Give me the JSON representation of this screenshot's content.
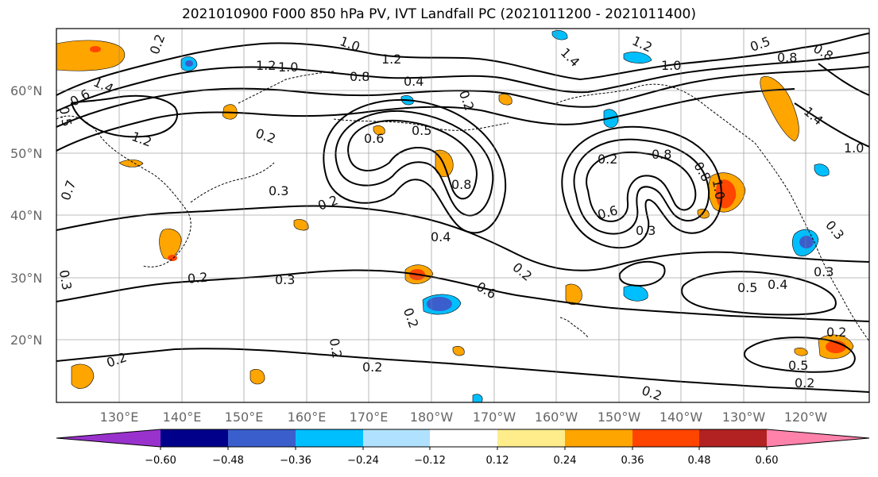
{
  "title": "2021010900 F000 850 hPa PV, IVT Landfall PC (2021011200 - 2021011400)",
  "map": {
    "lon_labels": [
      "130°E",
      "140°E",
      "150°E",
      "160°E",
      "170°E",
      "180°W",
      "170°W",
      "160°W",
      "150°W",
      "140°W",
      "130°W",
      "120°W"
    ],
    "lat_labels": [
      "60°N",
      "50°N",
      "40°N",
      "30°N",
      "20°N"
    ],
    "contour_labels": [
      "1.0",
      "1.2",
      "1.0",
      "1.2",
      "1.4",
      "0.8",
      "0.4",
      "0.2",
      "1.2",
      "1.4",
      "1.0",
      "0.5",
      "0.8",
      "0.8",
      "1.4",
      "1.0",
      "0.6",
      "0.5",
      "0.2",
      "0.3",
      "0.2",
      "0.5",
      "0.6",
      "0.8",
      "0.7",
      "0.8",
      "0.4",
      "0.3",
      "0.6",
      "0.3",
      "0.2",
      "0.3",
      "0.2",
      "0.2",
      "0.2",
      "0.6",
      "0.2",
      "0.2",
      "0.2",
      "0.5",
      "0.4",
      "0.3",
      "0.2",
      "0.5",
      "0.3",
      "0.2",
      "0.2",
      "1.2",
      "1.0",
      "0.2",
      "0.8",
      "0.4"
    ]
  },
  "colorbar": {
    "ticks": [
      "−0.60",
      "−0.48",
      "−0.36",
      "−0.24",
      "−0.12",
      "0.12",
      "0.24",
      "0.36",
      "0.48",
      "0.60"
    ],
    "colors": [
      "#9932cc",
      "#00008b",
      "#3a5fcd",
      "#00bfff",
      "#b0e2ff",
      "#ffffff",
      "#ffec8b",
      "#ffa500",
      "#ff4500",
      "#b22222",
      "#ff82ab"
    ]
  },
  "colors": {
    "grid": "#808080",
    "contour": "#000000",
    "frame": "#000000",
    "ticklabel": "#666666"
  }
}
